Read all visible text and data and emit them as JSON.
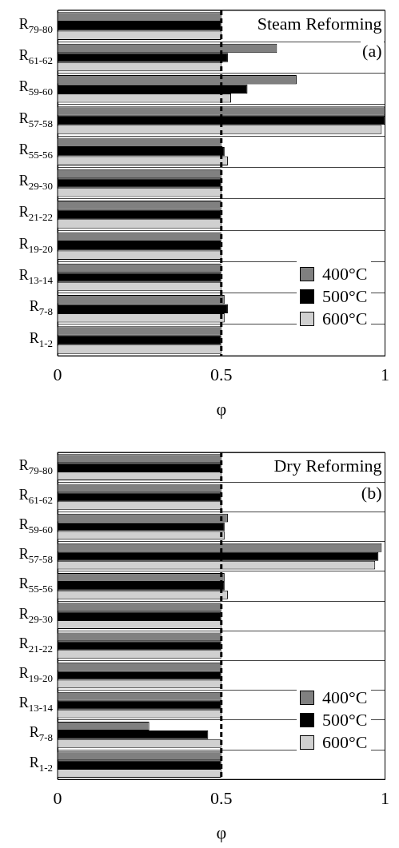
{
  "chart_data": [
    {
      "type": "bar",
      "orientation": "horizontal",
      "title": "Steam Reforming",
      "annotations": [
        "(a)"
      ],
      "xlabel": "φ",
      "categories": [
        "R$_{79-80}$",
        "R$_{61-62}$",
        "R$_{59-60}$",
        "R$_{57-58}$",
        "R$_{55-56}$",
        "R$_{29-30}$",
        "R$_{21-22}$",
        "R$_{19-20}$",
        "R$_{13-14}$",
        "R$_{7-8}$",
        "R$_{1-2}$"
      ],
      "series": [
        {
          "name": "400°C",
          "color": "#808080",
          "values": [
            0.5,
            0.67,
            0.73,
            1.0,
            0.5,
            0.5,
            0.5,
            0.5,
            0.5,
            0.51,
            0.5
          ]
        },
        {
          "name": "500°C",
          "color": "#000000",
          "values": [
            0.5,
            0.52,
            0.58,
            1.0,
            0.51,
            0.5,
            0.5,
            0.5,
            0.5,
            0.52,
            0.5
          ]
        },
        {
          "name": "600°C",
          "color": "#d0d0d0",
          "values": [
            0.5,
            0.5,
            0.53,
            0.99,
            0.52,
            0.5,
            0.5,
            0.5,
            0.5,
            0.51,
            0.5
          ]
        }
      ],
      "xlim": [
        0,
        1
      ],
      "xticks": [
        0,
        0.5,
        1
      ],
      "grid": "y",
      "legend": "bottom right",
      "ref_lines": [
        {
          "axis": "x",
          "value": 0.5,
          "color": "#000000",
          "line_style": "dashed"
        }
      ]
    },
    {
      "type": "bar",
      "orientation": "horizontal",
      "title": "Dry Reforming",
      "annotations": [
        "(b)"
      ],
      "xlabel": "φ",
      "categories": [
        "R$_{79-80}$",
        "R$_{61-62}$",
        "R$_{59-60}$",
        "R$_{57-58}$",
        "R$_{55-56}$",
        "R$_{29-30}$",
        "R$_{21-22}$",
        "R$_{19-20}$",
        "R$_{13-14}$",
        "R$_{7-8}$",
        "R$_{1-2}$"
      ],
      "series": [
        {
          "name": "400°C",
          "color": "#808080",
          "values": [
            0.5,
            0.5,
            0.52,
            0.99,
            0.51,
            0.5,
            0.5,
            0.5,
            0.5,
            0.28,
            0.5
          ]
        },
        {
          "name": "500°C",
          "color": "#000000",
          "values": [
            0.5,
            0.5,
            0.51,
            0.98,
            0.51,
            0.5,
            0.5,
            0.5,
            0.5,
            0.46,
            0.5
          ]
        },
        {
          "name": "600°C",
          "color": "#d0d0d0",
          "values": [
            0.5,
            0.5,
            0.51,
            0.97,
            0.52,
            0.5,
            0.5,
            0.5,
            0.5,
            0.5,
            0.5
          ]
        }
      ],
      "xlim": [
        0,
        1
      ],
      "xticks": [
        0,
        0.5,
        1
      ],
      "grid": "y",
      "legend": "bottom right",
      "ref_lines": [
        {
          "axis": "x",
          "value": 0.5,
          "color": "#000000",
          "line_style": "dashed"
        }
      ]
    }
  ]
}
